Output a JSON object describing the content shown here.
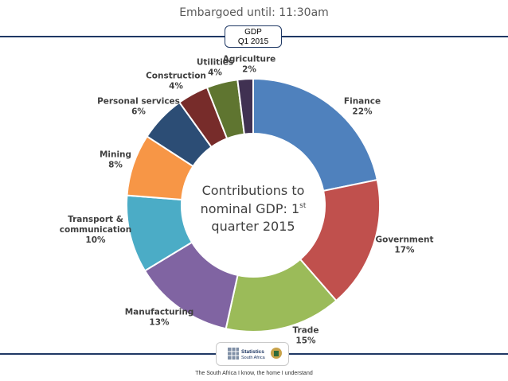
{
  "header": {
    "embargo": "Embargoed until: 11:30am",
    "badge_line1": "GDP",
    "badge_line2": "Q1 2015"
  },
  "chart_data": {
    "type": "pie",
    "donut": true,
    "center_title": [
      "Contributions to",
      "nominal GDP: 1",
      "quarter 2015"
    ],
    "center_superscript": "st",
    "slices": [
      {
        "name": "Finance",
        "value": 22,
        "label": "22%",
        "color": "#4f81bd"
      },
      {
        "name": "Government",
        "value": 17,
        "label": "17%",
        "color": "#c0504d"
      },
      {
        "name": "Trade",
        "value": 15,
        "label": "15%",
        "color": "#9bbb59"
      },
      {
        "name": "Manufacturing",
        "value": 13,
        "label": "13%",
        "color": "#8064a2"
      },
      {
        "name": "Transport & communication",
        "value": 10,
        "label": "10%",
        "color": "#4bacc6"
      },
      {
        "name": "Mining",
        "value": 8,
        "label": "8%",
        "color": "#f79646"
      },
      {
        "name": "Personal services",
        "value": 6,
        "label": "6%",
        "color": "#2c4d75"
      },
      {
        "name": "Construction",
        "value": 4,
        "label": "4%",
        "color": "#772c2a"
      },
      {
        "name": "Utilities",
        "value": 4,
        "label": "4%",
        "color": "#5f7530"
      },
      {
        "name": "Agriculture",
        "value": 2,
        "label": "2%",
        "color": "#403152"
      }
    ]
  },
  "footer": {
    "logo_text_line1": "Statistics",
    "logo_text_line2": "South Africa",
    "tagline": "The South Africa I know, the home I understand"
  }
}
